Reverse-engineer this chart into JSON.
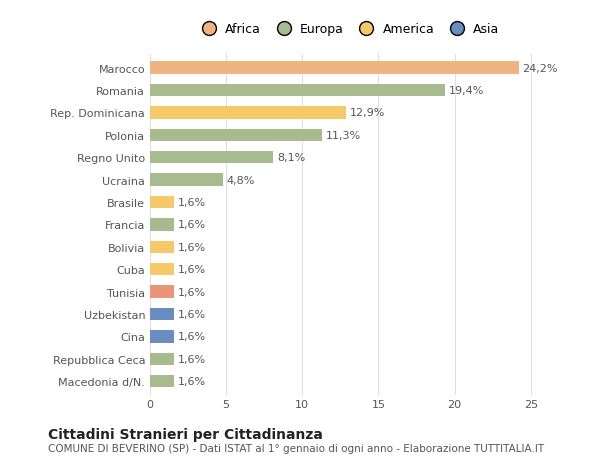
{
  "categories": [
    "Macedonia d/N.",
    "Repubblica Ceca",
    "Cina",
    "Uzbekistan",
    "Tunisia",
    "Cuba",
    "Bolivia",
    "Francia",
    "Brasile",
    "Ucraina",
    "Regno Unito",
    "Polonia",
    "Rep. Dominicana",
    "Romania",
    "Marocco"
  ],
  "values": [
    1.6,
    1.6,
    1.6,
    1.6,
    1.6,
    1.6,
    1.6,
    1.6,
    1.6,
    4.8,
    8.1,
    11.3,
    12.9,
    19.4,
    24.2
  ],
  "labels": [
    "1,6%",
    "1,6%",
    "1,6%",
    "1,6%",
    "1,6%",
    "1,6%",
    "1,6%",
    "1,6%",
    "1,6%",
    "4,8%",
    "8,1%",
    "11,3%",
    "12,9%",
    "19,4%",
    "24,2%"
  ],
  "colors": [
    "#a8bb8e",
    "#a8bb8e",
    "#6b8cbf",
    "#6b8cbf",
    "#e8957a",
    "#f5c96a",
    "#f5c96a",
    "#a8bb8e",
    "#f5c96a",
    "#a8bb8e",
    "#a8bb8e",
    "#a8bb8e",
    "#f5c96a",
    "#a8bb8e",
    "#f0b482"
  ],
  "legend": {
    "Africa": "#f0b482",
    "Europa": "#a8bb8e",
    "America": "#f5c96a",
    "Asia": "#6b8cbf"
  },
  "title": "Cittadini Stranieri per Cittadinanza",
  "subtitle": "COMUNE DI BEVERINO (SP) - Dati ISTAT al 1° gennaio di ogni anno - Elaborazione TUTTITALIA.IT",
  "xlim": [
    0,
    26
  ],
  "xticks": [
    0,
    5,
    10,
    15,
    20,
    25
  ],
  "background_color": "#ffffff",
  "bar_height": 0.55,
  "title_fontsize": 10,
  "subtitle_fontsize": 7.5,
  "tick_fontsize": 8,
  "label_fontsize": 8
}
